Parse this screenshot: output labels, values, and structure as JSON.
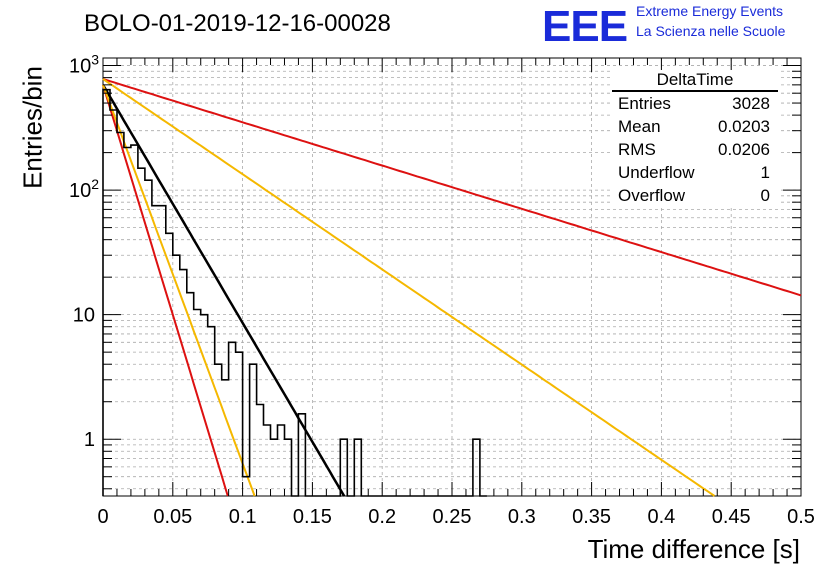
{
  "title": "BOLO-01-2019-12-16-00028",
  "logo": {
    "text": "EEE",
    "line1": "Extreme Energy Events",
    "line2": "La Scienza nelle Scuole",
    "color": "#1a2bd9"
  },
  "stats": {
    "name": "DeltaTime",
    "rows": [
      {
        "label": "Entries",
        "value": "3028"
      },
      {
        "label": "Mean",
        "value": "0.0203"
      },
      {
        "label": "RMS",
        "value": "0.0206"
      },
      {
        "label": "Underflow",
        "value": "1"
      },
      {
        "label": "Overflow",
        "value": "0"
      }
    ]
  },
  "chart_data": {
    "type": "line",
    "xlabel": "Time difference [s]",
    "ylabel": "Entries/bin",
    "xlim": [
      0,
      0.5
    ],
    "ylim": [
      0.35,
      1150
    ],
    "yscale": "log",
    "grid": true,
    "xticks": [
      "0",
      "0.05",
      "0.1",
      "0.15",
      "0.2",
      "0.25",
      "0.3",
      "0.35",
      "0.4",
      "0.45",
      "0.5"
    ],
    "yticks": [
      {
        "value": 1,
        "label": "1"
      },
      {
        "value": 10,
        "label": "10"
      },
      {
        "value": 100,
        "label": "10^2"
      },
      {
        "value": 1000,
        "label": "10^3"
      }
    ],
    "histogram": {
      "bin_width": 0.005,
      "color": "#000000",
      "values": [
        640,
        440,
        290,
        220,
        230,
        150,
        120,
        75,
        75,
        45,
        30,
        23,
        15,
        11,
        10,
        8,
        4,
        3,
        6,
        5,
        0.5,
        4,
        1.9,
        1.3,
        1.0,
        1.3,
        1.0,
        0.3,
        1.6,
        0.3,
        0.3,
        0.3,
        0.3,
        0.3,
        1.0,
        0.3,
        1.0,
        0.3,
        0.3,
        0.3,
        0.3,
        0.3,
        0.3,
        0.3,
        0.3,
        0.3,
        0.3,
        0.3,
        0.3,
        0.3,
        0.3,
        0.3,
        0.3,
        1.0,
        0.3
      ]
    },
    "series": [
      {
        "amplitude": 700,
        "slope": -44,
        "color": "#000000",
        "width": 2.5
      },
      {
        "amplitude": 700,
        "slope": -85,
        "color": "#dd1111",
        "width": 2
      },
      {
        "amplitude": 700,
        "slope": -70,
        "color": "#f5b800",
        "width": 2
      },
      {
        "amplitude": 780,
        "slope": -8,
        "color": "#dd1111",
        "width": 2
      },
      {
        "amplitude": 780,
        "slope": -17.6,
        "color": "#f5b800",
        "width": 2
      }
    ]
  }
}
